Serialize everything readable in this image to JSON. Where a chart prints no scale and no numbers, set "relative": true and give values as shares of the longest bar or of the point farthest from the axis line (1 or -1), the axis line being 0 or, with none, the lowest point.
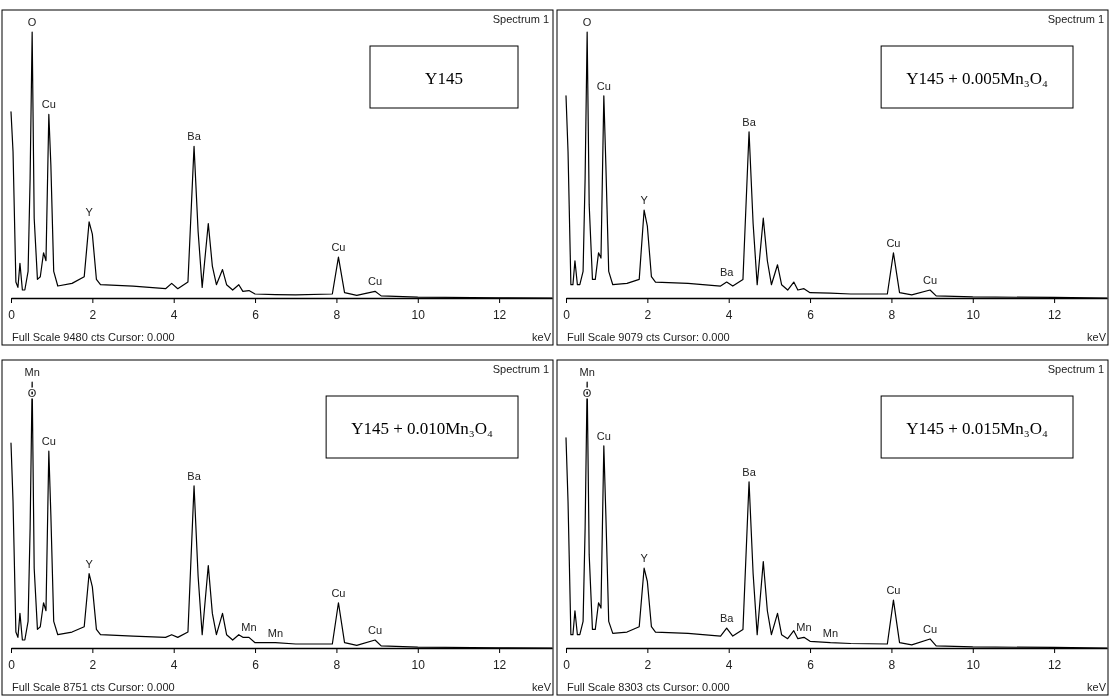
{
  "chart_data": [
    {
      "type": "line",
      "title": "Y145",
      "xlabel": "keV",
      "relative": true,
      "xlim": [
        0,
        13.3
      ],
      "xticks": [
        0,
        2,
        4,
        6,
        8,
        10,
        12
      ],
      "x": [
        0,
        0.05,
        0.12,
        0.17,
        0.22,
        0.28,
        0.34,
        0.42,
        0.47,
        0.52,
        0.57,
        0.65,
        0.72,
        0.8,
        0.86,
        0.93,
        0.98,
        1.05,
        1.15,
        1.5,
        1.8,
        1.92,
        2.0,
        2.1,
        2.2,
        3.0,
        3.8,
        3.95,
        4.1,
        4.35,
        4.5,
        4.6,
        4.7,
        4.85,
        4.95,
        5.05,
        5.2,
        5.3,
        5.45,
        5.6,
        5.7,
        5.85,
        6.0,
        6.5,
        7.0,
        7.9,
        8.05,
        8.2,
        8.5,
        8.95,
        9.1,
        10,
        12,
        13.3
      ],
      "series": [
        {
          "color": "#000000",
          "values": [
            0.7,
            0.55,
            0.06,
            0.04,
            0.13,
            0.03,
            0.03,
            0.1,
            0.45,
            1.0,
            0.3,
            0.07,
            0.08,
            0.17,
            0.14,
            0.69,
            0.5,
            0.1,
            0.045,
            0.055,
            0.08,
            0.286,
            0.24,
            0.07,
            0.05,
            0.045,
            0.035,
            0.055,
            0.035,
            0.06,
            0.57,
            0.25,
            0.04,
            0.28,
            0.12,
            0.05,
            0.107,
            0.05,
            0.03,
            0.05,
            0.025,
            0.028,
            0.015,
            0.013,
            0.012,
            0.015,
            0.154,
            0.02,
            0.01,
            0.025,
            0.008,
            0.003,
            0.001,
            0
          ]
        }
      ],
      "annotations": [
        {
          "text": "O",
          "x": 0.52,
          "y": 1.0
        },
        {
          "text": "Cu",
          "x": 0.93,
          "y": 0.69
        },
        {
          "text": "Y",
          "x": 1.92,
          "y": 0.286
        },
        {
          "text": "Ba",
          "x": 4.5,
          "y": 0.57
        },
        {
          "text": "Cu",
          "x": 8.05,
          "y": 0.154
        },
        {
          "text": "Cu",
          "x": 8.95,
          "y": 0.025
        },
        "Spectrum 1",
        "Full Scale 9480 cts Cursor: 0.000"
      ]
    },
    {
      "type": "line",
      "title": "Y145 + 0.005Mn₃O₄",
      "xlabel": "keV",
      "relative": true,
      "xlim": [
        0,
        13.3
      ],
      "xticks": [
        0,
        2,
        4,
        6,
        8,
        10,
        12
      ],
      "x": [
        0,
        0.05,
        0.12,
        0.17,
        0.22,
        0.28,
        0.34,
        0.42,
        0.47,
        0.52,
        0.57,
        0.65,
        0.72,
        0.8,
        0.86,
        0.93,
        0.98,
        1.05,
        1.15,
        1.5,
        1.8,
        1.92,
        2.0,
        2.1,
        2.2,
        3.0,
        3.8,
        3.95,
        4.1,
        4.35,
        4.5,
        4.6,
        4.7,
        4.85,
        4.95,
        5.05,
        5.2,
        5.3,
        5.45,
        5.6,
        5.7,
        5.85,
        6.0,
        6.5,
        7.0,
        7.9,
        8.05,
        8.2,
        8.5,
        8.95,
        9.1,
        10,
        12,
        13.3
      ],
      "series": [
        {
          "color": "#000000",
          "values": [
            0.76,
            0.55,
            0.05,
            0.05,
            0.14,
            0.05,
            0.05,
            0.1,
            0.45,
            1.0,
            0.35,
            0.07,
            0.07,
            0.17,
            0.15,
            0.76,
            0.5,
            0.1,
            0.05,
            0.055,
            0.07,
            0.33,
            0.27,
            0.08,
            0.06,
            0.055,
            0.045,
            0.06,
            0.045,
            0.07,
            0.625,
            0.28,
            0.05,
            0.3,
            0.14,
            0.05,
            0.125,
            0.05,
            0.03,
            0.06,
            0.03,
            0.035,
            0.02,
            0.018,
            0.015,
            0.015,
            0.17,
            0.02,
            0.012,
            0.03,
            0.008,
            0.004,
            0.002,
            0
          ]
        }
      ],
      "annotations": [
        {
          "text": "O",
          "x": 0.52,
          "y": 1.0
        },
        {
          "text": "Cu",
          "x": 0.93,
          "y": 0.76
        },
        {
          "text": "Y",
          "x": 1.92,
          "y": 0.33
        },
        {
          "text": "Ba",
          "x": 3.95,
          "y": 0.06
        },
        {
          "text": "Ba",
          "x": 4.5,
          "y": 0.625
        },
        {
          "text": "Cu",
          "x": 8.05,
          "y": 0.17
        },
        {
          "text": "Cu",
          "x": 8.95,
          "y": 0.03
        },
        "Spectrum 1",
        "Full Scale 9079 cts Cursor: 0.000"
      ]
    },
    {
      "type": "line",
      "title": "Y145 + 0.010Mn₃O₄",
      "xlabel": "keV",
      "relative": true,
      "xlim": [
        0,
        13.3
      ],
      "xticks": [
        0,
        2,
        4,
        6,
        8,
        10,
        12
      ],
      "x": [
        0,
        0.05,
        0.12,
        0.17,
        0.22,
        0.28,
        0.34,
        0.42,
        0.47,
        0.52,
        0.57,
        0.65,
        0.72,
        0.8,
        0.86,
        0.93,
        0.98,
        1.05,
        1.15,
        1.5,
        1.8,
        1.92,
        2.0,
        2.1,
        2.2,
        3.0,
        3.8,
        3.95,
        4.1,
        4.35,
        4.5,
        4.6,
        4.7,
        4.85,
        4.95,
        5.05,
        5.2,
        5.3,
        5.45,
        5.6,
        5.7,
        5.85,
        6.0,
        6.5,
        7.0,
        7.9,
        8.05,
        8.2,
        8.5,
        8.95,
        9.1,
        10,
        12,
        13.3
      ],
      "series": [
        {
          "color": "#000000",
          "values": [
            0.77,
            0.55,
            0.06,
            0.04,
            0.13,
            0.03,
            0.03,
            0.1,
            0.45,
            1.0,
            0.3,
            0.07,
            0.08,
            0.17,
            0.14,
            0.74,
            0.5,
            0.1,
            0.05,
            0.06,
            0.08,
            0.28,
            0.23,
            0.07,
            0.05,
            0.045,
            0.04,
            0.05,
            0.04,
            0.06,
            0.61,
            0.27,
            0.05,
            0.31,
            0.13,
            0.05,
            0.13,
            0.05,
            0.03,
            0.05,
            0.04,
            0.04,
            0.02,
            0.02,
            0.015,
            0.015,
            0.17,
            0.02,
            0.01,
            0.03,
            0.008,
            0.003,
            0.001,
            0
          ]
        }
      ],
      "annotations": [
        {
          "text": "Mn",
          "x": 0.52,
          "y": 1.0
        },
        {
          "text": "O",
          "x": 0.52,
          "y": 0.92
        },
        {
          "text": "Cu",
          "x": 0.93,
          "y": 0.74
        },
        {
          "text": "Y",
          "x": 1.92,
          "y": 0.28
        },
        {
          "text": "Ba",
          "x": 4.5,
          "y": 0.61
        },
        {
          "text": "Mn",
          "x": 5.85,
          "y": 0.04
        },
        {
          "text": "Mn",
          "x": 6.5,
          "y": 0.02
        },
        {
          "text": "Cu",
          "x": 8.05,
          "y": 0.17
        },
        {
          "text": "Cu",
          "x": 8.95,
          "y": 0.03
        },
        "Spectrum 1",
        "Full Scale 8751 cts Cursor: 0.000"
      ]
    },
    {
      "type": "line",
      "title": "Y145 + 0.015Mn₃O₄",
      "xlabel": "keV",
      "relative": true,
      "xlim": [
        0,
        13.3
      ],
      "xticks": [
        0,
        2,
        4,
        6,
        8,
        10,
        12
      ],
      "x": [
        0,
        0.05,
        0.12,
        0.17,
        0.22,
        0.28,
        0.34,
        0.42,
        0.47,
        0.52,
        0.57,
        0.65,
        0.72,
        0.8,
        0.86,
        0.93,
        0.98,
        1.05,
        1.15,
        1.5,
        1.8,
        1.92,
        2.0,
        2.1,
        2.2,
        3.0,
        3.8,
        3.95,
        4.1,
        4.35,
        4.5,
        4.6,
        4.7,
        4.85,
        4.95,
        5.05,
        5.2,
        5.3,
        5.45,
        5.6,
        5.7,
        5.85,
        6.0,
        6.5,
        7.0,
        7.9,
        8.05,
        8.2,
        8.5,
        8.95,
        9.1,
        10,
        12,
        13.3
      ],
      "series": [
        {
          "color": "#000000",
          "values": [
            0.79,
            0.55,
            0.05,
            0.05,
            0.14,
            0.05,
            0.05,
            0.1,
            0.45,
            1.0,
            0.35,
            0.07,
            0.07,
            0.17,
            0.15,
            0.76,
            0.5,
            0.1,
            0.055,
            0.06,
            0.08,
            0.3,
            0.25,
            0.08,
            0.06,
            0.055,
            0.045,
            0.075,
            0.045,
            0.07,
            0.625,
            0.28,
            0.05,
            0.325,
            0.14,
            0.05,
            0.13,
            0.05,
            0.035,
            0.065,
            0.035,
            0.04,
            0.025,
            0.02,
            0.017,
            0.015,
            0.18,
            0.02,
            0.012,
            0.034,
            0.008,
            0.004,
            0.002,
            0
          ]
        }
      ],
      "annotations": [
        {
          "text": "Mn",
          "x": 0.52,
          "y": 1.0
        },
        {
          "text": "O",
          "x": 0.52,
          "y": 0.92
        },
        {
          "text": "Cu",
          "x": 0.93,
          "y": 0.76
        },
        {
          "text": "Y",
          "x": 1.92,
          "y": 0.3
        },
        {
          "text": "Ba",
          "x": 3.95,
          "y": 0.075
        },
        {
          "text": "Ba",
          "x": 4.5,
          "y": 0.625
        },
        {
          "text": "Mn",
          "x": 5.85,
          "y": 0.04
        },
        {
          "text": "Mn",
          "x": 6.5,
          "y": 0.02
        },
        {
          "text": "Cu",
          "x": 8.05,
          "y": 0.18
        },
        {
          "text": "Cu",
          "x": 8.95,
          "y": 0.034
        },
        "Spectrum 1",
        "Full Scale 8303 cts Cursor: 0.000"
      ]
    }
  ]
}
